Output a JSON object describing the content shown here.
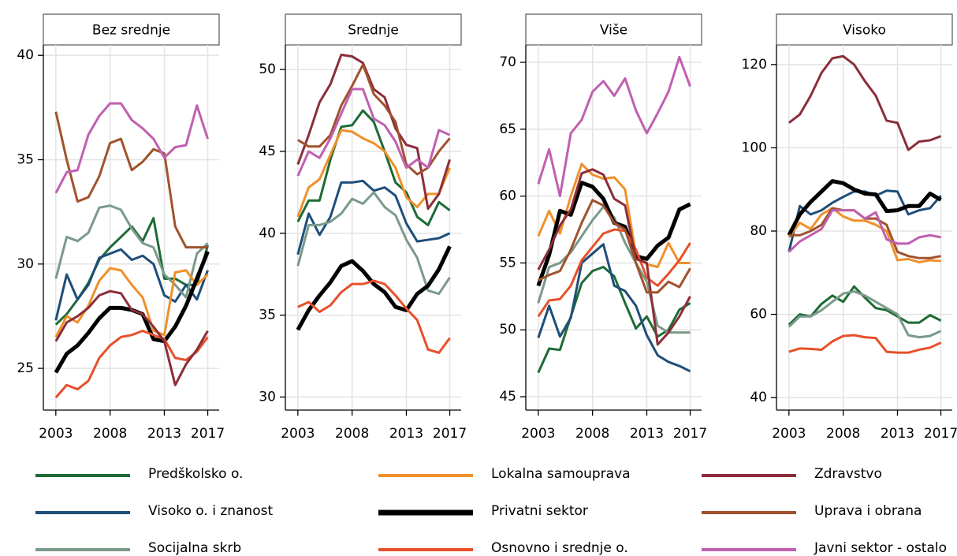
{
  "chart_data": {
    "type": "line",
    "x": [
      2003,
      2004,
      2005,
      2006,
      2007,
      2008,
      2009,
      2010,
      2011,
      2012,
      2013,
      2014,
      2015,
      2016,
      2017
    ],
    "xlim": [
      2001.85,
      2018.05
    ],
    "xticks": [
      2003,
      2008,
      2013,
      2017
    ],
    "grid": true,
    "series": [
      {
        "name": "Predškolsko o.",
        "color": "#1e6b35"
      },
      {
        "name": "Visoko o. i znanost",
        "color": "#1f4e79"
      },
      {
        "name": "Socijalna skrb",
        "color": "#7a9a8a"
      },
      {
        "name": "Lokalna samouprava",
        "color": "#f0902a"
      },
      {
        "name": "Privatni sektor",
        "color": "#000000",
        "emphasis": true
      },
      {
        "name": "Osnovno i srednje o.",
        "color": "#e8502a"
      },
      {
        "name": "Zdravstvo",
        "color": "#8b2e3a"
      },
      {
        "name": "Uprava i obrana",
        "color": "#a0522d"
      },
      {
        "name": "Javni sektor - ostalo",
        "color": "#c060b0"
      }
    ],
    "panels": [
      {
        "title": "Bez srednje",
        "ylim": [
          23,
          40.5
        ],
        "yticks": [
          25,
          30,
          35,
          40
        ],
        "values": [
          [
            27.1,
            27.6,
            28.3,
            29.1,
            30.2,
            30.8,
            31.3,
            31.8,
            31.1,
            32.2,
            29.3,
            29.3,
            29.0,
            29.0,
            30.9
          ],
          [
            27.3,
            29.5,
            28.3,
            29.0,
            30.3,
            30.5,
            30.7,
            30.2,
            30.4,
            30.0,
            28.5,
            28.2,
            29.0,
            28.3,
            29.7
          ],
          [
            29.3,
            31.3,
            31.1,
            31.5,
            32.7,
            32.8,
            32.6,
            31.7,
            31.0,
            30.8,
            29.5,
            29.0,
            28.4,
            30.5,
            31.0
          ],
          [
            26.5,
            27.5,
            27.2,
            28.0,
            29.2,
            29.8,
            29.7,
            29.0,
            28.4,
            26.8,
            26.6,
            29.6,
            29.7,
            29.0,
            29.5
          ],
          [
            24.8,
            25.7,
            26.1,
            26.7,
            27.4,
            27.9,
            27.9,
            27.8,
            27.6,
            26.4,
            26.3,
            27.0,
            28.0,
            29.3,
            30.6
          ],
          [
            23.6,
            24.2,
            24.0,
            24.4,
            25.5,
            26.1,
            26.5,
            26.6,
            26.8,
            26.6,
            26.4,
            25.5,
            25.4,
            25.8,
            26.5
          ],
          [
            26.3,
            27.2,
            27.5,
            27.9,
            28.5,
            28.7,
            28.6,
            27.8,
            27.6,
            27.0,
            26.3,
            24.2,
            25.2,
            25.9,
            26.8
          ],
          [
            37.3,
            35.0,
            33.0,
            33.2,
            34.2,
            35.8,
            36.0,
            34.5,
            34.9,
            35.5,
            35.3,
            31.8,
            30.8,
            30.8,
            30.8
          ],
          [
            33.4,
            34.4,
            34.5,
            36.2,
            37.1,
            37.7,
            37.7,
            36.9,
            36.5,
            36.0,
            35.1,
            35.6,
            35.7,
            37.6,
            36.0
          ]
        ]
      },
      {
        "title": "Srednje",
        "ylim": [
          29.2,
          51.5
        ],
        "yticks": [
          30,
          35,
          40,
          45,
          50
        ],
        "values": [
          [
            40.7,
            42.0,
            42.0,
            44.5,
            46.5,
            46.6,
            47.5,
            46.8,
            45.0,
            43.1,
            42.5,
            41.0,
            40.5,
            41.9,
            41.4
          ],
          [
            38.7,
            41.2,
            39.9,
            41.0,
            43.1,
            43.1,
            43.2,
            42.6,
            42.8,
            42.3,
            40.6,
            39.5,
            39.6,
            39.7,
            40.0
          ],
          [
            38.0,
            40.5,
            40.5,
            40.7,
            41.2,
            42.1,
            41.8,
            42.5,
            41.6,
            41.1,
            39.6,
            38.5,
            36.5,
            36.3,
            37.3
          ],
          [
            41.0,
            42.8,
            43.3,
            44.8,
            46.3,
            46.2,
            45.8,
            45.5,
            45.0,
            44.0,
            42.2,
            41.6,
            42.4,
            42.4,
            44.0
          ],
          [
            34.1,
            35.3,
            36.2,
            37.0,
            38.0,
            38.3,
            37.7,
            36.9,
            36.4,
            35.5,
            35.3,
            36.3,
            36.8,
            37.8,
            39.2
          ],
          [
            35.5,
            35.8,
            35.2,
            35.6,
            36.4,
            36.9,
            36.9,
            37.1,
            36.9,
            36.2,
            35.4,
            34.7,
            32.9,
            32.7,
            33.6
          ],
          [
            44.2,
            46.0,
            48.0,
            49.1,
            50.9,
            50.8,
            50.4,
            48.8,
            48.3,
            46.4,
            45.4,
            45.2,
            41.5,
            42.4,
            44.5
          ],
          [
            45.7,
            45.3,
            45.3,
            46.0,
            47.8,
            49.0,
            50.3,
            48.5,
            47.8,
            46.8,
            44.2,
            43.6,
            44.0,
            45.0,
            45.8
          ],
          [
            43.5,
            45.0,
            44.6,
            45.8,
            47.3,
            48.8,
            48.8,
            47.0,
            46.6,
            45.6,
            44.0,
            44.5,
            44.0,
            46.3,
            46.0
          ]
        ]
      },
      {
        "title": "Više",
        "ylim": [
          44,
          71.3
        ],
        "yticks": [
          45,
          50,
          55,
          60,
          65,
          70
        ],
        "values": [
          [
            46.8,
            48.6,
            48.5,
            51.0,
            53.5,
            54.4,
            54.7,
            54.0,
            52.0,
            50.1,
            51.0,
            49.5,
            50.0,
            51.5,
            52.0
          ],
          [
            49.4,
            51.8,
            49.5,
            50.9,
            55.0,
            55.7,
            56.4,
            53.3,
            52.9,
            51.8,
            49.6,
            48.1,
            47.6,
            47.3,
            46.9
          ],
          [
            52.0,
            54.7,
            55.0,
            55.8,
            57.0,
            58.2,
            59.2,
            58.4,
            56.5,
            55.0,
            53.6,
            50.3,
            49.8,
            49.8,
            49.8
          ],
          [
            57.0,
            58.9,
            57.2,
            60.0,
            62.4,
            61.6,
            61.3,
            61.4,
            60.5,
            55.6,
            54.9,
            54.7,
            56.5,
            55.0,
            55.0
          ],
          [
            53.3,
            55.6,
            58.9,
            58.6,
            61.0,
            60.7,
            59.8,
            58.0,
            57.7,
            55.5,
            55.3,
            56.3,
            56.9,
            59.0,
            59.4
          ],
          [
            51.0,
            52.2,
            52.3,
            53.3,
            55.2,
            56.2,
            57.2,
            57.5,
            57.4,
            56.0,
            53.9,
            53.3,
            54.2,
            55.2,
            56.5
          ],
          [
            54.5,
            56.0,
            57.8,
            59.0,
            61.7,
            62.0,
            61.6,
            59.8,
            59.3,
            55.3,
            55.0,
            48.9,
            49.8,
            51.0,
            52.5
          ],
          [
            53.7,
            54.1,
            54.4,
            56.0,
            58.0,
            59.7,
            59.3,
            58.0,
            57.5,
            55.0,
            52.8,
            52.8,
            53.6,
            53.2,
            54.6
          ],
          [
            60.9,
            63.5,
            60.0,
            64.7,
            65.7,
            67.8,
            68.6,
            67.5,
            68.8,
            66.4,
            64.7,
            66.2,
            67.8,
            70.4,
            68.2
          ]
        ]
      },
      {
        "title": "Visoko",
        "ylim": [
          37,
          124.7
        ],
        "yticks": [
          40,
          60,
          80,
          100,
          120
        ],
        "values": [
          [
            57.5,
            60.0,
            59.5,
            62.5,
            64.5,
            63.0,
            66.7,
            64.0,
            61.5,
            61.0,
            59.5,
            58.0,
            58.0,
            59.8,
            58.5
          ],
          [
            75.0,
            86.0,
            84.0,
            85.0,
            86.8,
            88.2,
            89.5,
            89.5,
            88.5,
            89.7,
            89.5,
            84.0,
            85.0,
            85.5,
            88.5
          ],
          [
            57.0,
            59.5,
            59.5,
            61.0,
            63.0,
            65.0,
            65.5,
            64.5,
            63.0,
            61.5,
            60.0,
            55.0,
            54.5,
            54.8,
            56.0
          ],
          [
            78.5,
            82.0,
            80.5,
            84.0,
            85.5,
            83.5,
            82.5,
            82.5,
            81.5,
            80.0,
            73.0,
            73.3,
            72.5,
            73.0,
            72.8
          ],
          [
            79.0,
            84.0,
            87.0,
            89.5,
            92.0,
            91.5,
            90.0,
            89.0,
            88.8,
            84.8,
            85.0,
            86.0,
            86.0,
            89.0,
            87.5
          ],
          [
            51.0,
            51.8,
            51.7,
            51.5,
            53.5,
            54.8,
            55.0,
            54.5,
            54.3,
            51.0,
            50.8,
            50.8,
            51.5,
            52.0,
            53.2
          ],
          [
            106.0,
            108.0,
            112.5,
            118.0,
            121.5,
            122.0,
            120.0,
            116.0,
            112.5,
            106.5,
            106.0,
            99.5,
            101.5,
            101.8,
            102.8
          ],
          [
            79.0,
            79.0,
            80.0,
            81.5,
            85.5,
            85.0,
            85.0,
            83.0,
            83.0,
            81.5,
            75.0,
            74.0,
            73.5,
            73.5,
            74.0
          ],
          [
            75.0,
            77.5,
            79.0,
            80.5,
            85.0,
            85.0,
            85.0,
            83.0,
            84.5,
            78.0,
            77.0,
            77.0,
            78.5,
            79.0,
            78.5
          ]
        ]
      }
    ]
  }
}
